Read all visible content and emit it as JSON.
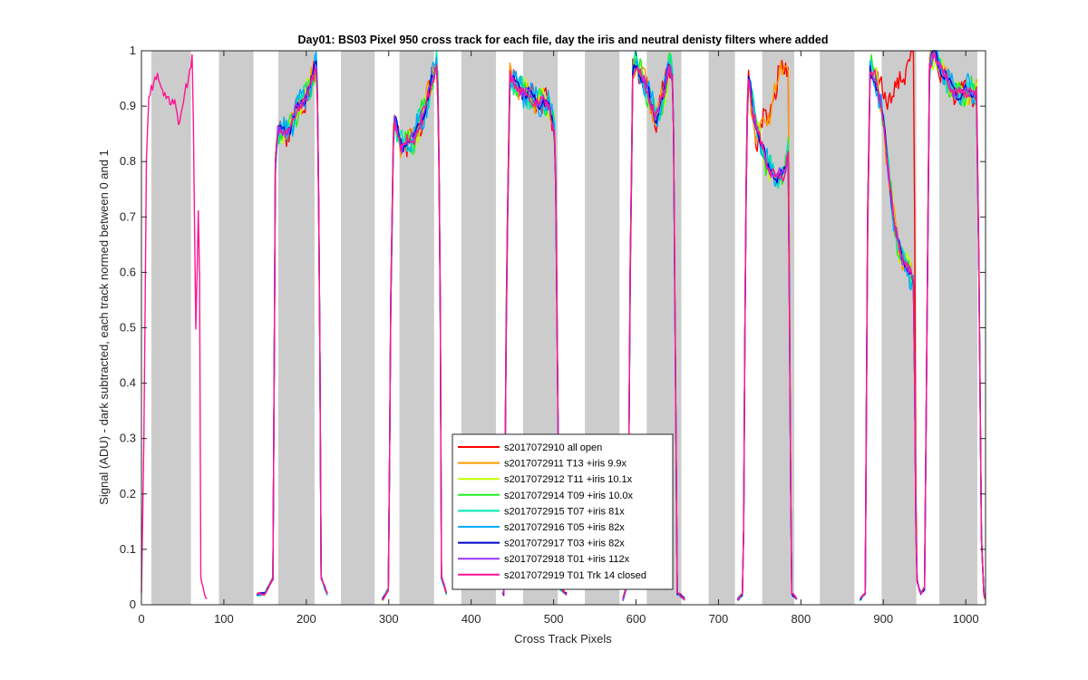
{
  "chart_data": {
    "type": "line",
    "title": "Day01: BS03  Pixel 950 cross track for each file, day the iris and neutral denisty filters where added",
    "xlabel": "Cross Track Pixels",
    "ylabel": "Signal (ADU) - dark subtracted, each track normed between 0 and 1",
    "xlim": [
      0,
      1024
    ],
    "ylim": [
      0,
      1
    ],
    "xticks": [
      "0",
      "100",
      "200",
      "300",
      "400",
      "500",
      "600",
      "700",
      "800",
      "900",
      "1000"
    ],
    "yticks": [
      "0",
      "0.1",
      "0.2",
      "0.3",
      "0.4",
      "0.5",
      "0.6",
      "0.7",
      "0.8",
      "0.9",
      "1"
    ],
    "legend_position": "bottom-center",
    "shaded_bands": [
      [
        12,
        60
      ],
      [
        94,
        136
      ],
      [
        166,
        210
      ],
      [
        242,
        283
      ],
      [
        313,
        355
      ],
      [
        388,
        430
      ],
      [
        463,
        505
      ],
      [
        538,
        580
      ],
      [
        613,
        655
      ],
      [
        688,
        720
      ],
      [
        753,
        792
      ],
      [
        823,
        865
      ],
      [
        898,
        940
      ],
      [
        968,
        1014
      ]
    ],
    "series": [
      {
        "name": "s2017072910 all open",
        "color": "#ff0000"
      },
      {
        "name": "s2017072911 T13 +iris 9.9x",
        "color": "#ff9900"
      },
      {
        "name": "s2017072912 T11 +iris 10.1x",
        "color": "#bfff00"
      },
      {
        "name": "s2017072914 T09 +iris 10.0x",
        "color": "#22ee22"
      },
      {
        "name": "s2017072915 T07 +iris 81x",
        "color": "#00e8b0"
      },
      {
        "name": "s2017072916 T05 +iris 82x",
        "color": "#00aaff"
      },
      {
        "name": "s2017072917 T03 +iris 82x",
        "color": "#0000cc"
      },
      {
        "name": "s2017072918 T01 +iris 112x",
        "color": "#9933ff"
      },
      {
        "name": "s2017072919 T01 Trk 14 closed",
        "color": "#ff1493"
      }
    ]
  }
}
